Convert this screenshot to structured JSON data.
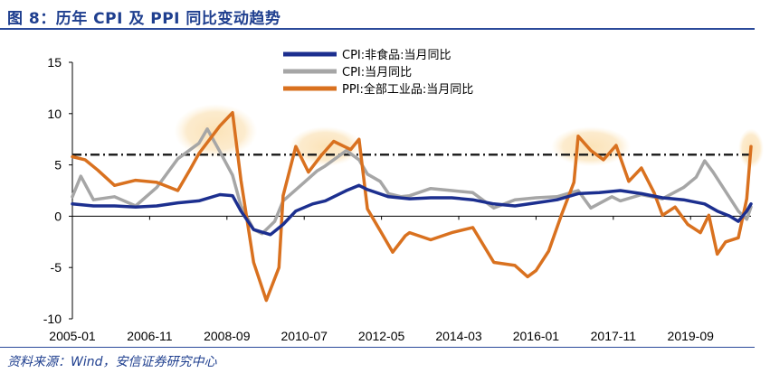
{
  "title": "图 8：历年 CPI 及 PPI 同比变动趋势",
  "source": "资料来源：Wind，安信证券研究中心",
  "chart_data": {
    "type": "line",
    "title": "图 8：历年 CPI 及 PPI 同比变动趋势",
    "xlabel": "",
    "ylabel": "",
    "ylim": [
      -10,
      15
    ],
    "yticks": [
      "15",
      "10",
      "5",
      "0",
      "-5",
      "-10"
    ],
    "xrange": [
      2005.0,
      2021.1
    ],
    "xticks": [
      "2005-01",
      "2006-11",
      "2008-09",
      "2010-07",
      "2012-05",
      "2014-03",
      "2016-01",
      "2017-11",
      "2019-09"
    ],
    "reference_line": {
      "y": 6,
      "style": "dash-dot",
      "color": "#222222"
    },
    "highlight_zones": [
      {
        "x": 2008.4,
        "y": 8.3
      },
      {
        "x": 2011.0,
        "y": 6.8
      },
      {
        "x": 2017.3,
        "y": 6.8
      },
      {
        "x": 2021.1,
        "y": 6.6
      }
    ],
    "legend_position": "top-center",
    "series": [
      {
        "name": "CPI:非食品:当月同比",
        "color": "#1c2f8f",
        "points": [
          [
            2005.0,
            1.2
          ],
          [
            2005.5,
            1.0
          ],
          [
            2006.0,
            1.0
          ],
          [
            2006.5,
            0.9
          ],
          [
            2007.0,
            1.0
          ],
          [
            2007.5,
            1.3
          ],
          [
            2008.0,
            1.5
          ],
          [
            2008.5,
            2.1
          ],
          [
            2008.8,
            2.0
          ],
          [
            2009.0,
            0.5
          ],
          [
            2009.3,
            -1.3
          ],
          [
            2009.7,
            -1.8
          ],
          [
            2010.0,
            -0.8
          ],
          [
            2010.3,
            0.5
          ],
          [
            2010.7,
            1.2
          ],
          [
            2011.0,
            1.5
          ],
          [
            2011.5,
            2.5
          ],
          [
            2011.8,
            3.0
          ],
          [
            2012.0,
            2.6
          ],
          [
            2012.5,
            1.9
          ],
          [
            2013.0,
            1.7
          ],
          [
            2013.5,
            1.8
          ],
          [
            2014.0,
            1.8
          ],
          [
            2014.5,
            1.6
          ],
          [
            2015.0,
            1.2
          ],
          [
            2015.5,
            1.0
          ],
          [
            2016.0,
            1.3
          ],
          [
            2016.5,
            1.6
          ],
          [
            2017.0,
            2.2
          ],
          [
            2017.5,
            2.3
          ],
          [
            2018.0,
            2.5
          ],
          [
            2018.5,
            2.2
          ],
          [
            2019.0,
            1.8
          ],
          [
            2019.5,
            1.6
          ],
          [
            2020.0,
            1.2
          ],
          [
            2020.3,
            0.5
          ],
          [
            2020.6,
            0.0
          ],
          [
            2020.8,
            -0.5
          ],
          [
            2021.0,
            0.5
          ],
          [
            2021.1,
            1.2
          ]
        ]
      },
      {
        "name": "CPI:当月同比",
        "color": "#a6a6a6",
        "points": [
          [
            2005.0,
            1.9
          ],
          [
            2005.2,
            3.9
          ],
          [
            2005.5,
            1.6
          ],
          [
            2006.0,
            1.9
          ],
          [
            2006.5,
            1.0
          ],
          [
            2007.0,
            2.8
          ],
          [
            2007.5,
            5.6
          ],
          [
            2008.0,
            7.1
          ],
          [
            2008.2,
            8.5
          ],
          [
            2008.5,
            6.3
          ],
          [
            2008.8,
            4.0
          ],
          [
            2009.0,
            1.0
          ],
          [
            2009.3,
            -1.3
          ],
          [
            2009.5,
            -1.7
          ],
          [
            2009.8,
            -0.5
          ],
          [
            2010.0,
            1.5
          ],
          [
            2010.5,
            3.3
          ],
          [
            2010.8,
            4.4
          ],
          [
            2011.0,
            4.9
          ],
          [
            2011.5,
            6.4
          ],
          [
            2011.8,
            5.5
          ],
          [
            2012.0,
            4.1
          ],
          [
            2012.3,
            3.4
          ],
          [
            2012.5,
            2.2
          ],
          [
            2012.8,
            1.9
          ],
          [
            2013.0,
            2.0
          ],
          [
            2013.5,
            2.7
          ],
          [
            2014.0,
            2.5
          ],
          [
            2014.5,
            2.3
          ],
          [
            2015.0,
            0.8
          ],
          [
            2015.5,
            1.6
          ],
          [
            2016.0,
            1.8
          ],
          [
            2016.5,
            1.9
          ],
          [
            2017.0,
            2.5
          ],
          [
            2017.3,
            0.8
          ],
          [
            2017.8,
            1.9
          ],
          [
            2018.0,
            1.5
          ],
          [
            2018.5,
            2.1
          ],
          [
            2019.0,
            1.7
          ],
          [
            2019.5,
            2.8
          ],
          [
            2019.8,
            3.8
          ],
          [
            2020.0,
            5.4
          ],
          [
            2020.2,
            4.3
          ],
          [
            2020.5,
            2.4
          ],
          [
            2020.8,
            0.5
          ],
          [
            2021.0,
            -0.3
          ],
          [
            2021.1,
            0.9
          ]
        ]
      },
      {
        "name": "PPI:全部工业品:当月同比",
        "color": "#d9711f",
        "points": [
          [
            2005.0,
            5.8
          ],
          [
            2005.3,
            5.5
          ],
          [
            2005.6,
            4.5
          ],
          [
            2006.0,
            3.0
          ],
          [
            2006.5,
            3.5
          ],
          [
            2007.0,
            3.3
          ],
          [
            2007.5,
            2.5
          ],
          [
            2007.8,
            4.6
          ],
          [
            2008.0,
            6.1
          ],
          [
            2008.5,
            8.8
          ],
          [
            2008.8,
            10.1
          ],
          [
            2009.0,
            3.5
          ],
          [
            2009.3,
            -4.5
          ],
          [
            2009.6,
            -8.2
          ],
          [
            2009.9,
            -5.0
          ],
          [
            2010.0,
            2.0
          ],
          [
            2010.3,
            6.8
          ],
          [
            2010.6,
            4.3
          ],
          [
            2010.9,
            5.9
          ],
          [
            2011.2,
            7.3
          ],
          [
            2011.6,
            6.5
          ],
          [
            2011.8,
            7.5
          ],
          [
            2012.0,
            0.7
          ],
          [
            2012.3,
            -1.4
          ],
          [
            2012.6,
            -3.5
          ],
          [
            2012.9,
            -1.9
          ],
          [
            2013.0,
            -1.6
          ],
          [
            2013.5,
            -2.3
          ],
          [
            2014.0,
            -1.6
          ],
          [
            2014.5,
            -1.1
          ],
          [
            2015.0,
            -4.5
          ],
          [
            2015.5,
            -4.8
          ],
          [
            2015.8,
            -5.9
          ],
          [
            2016.0,
            -5.3
          ],
          [
            2016.3,
            -3.4
          ],
          [
            2016.6,
            0.1
          ],
          [
            2016.9,
            3.3
          ],
          [
            2017.0,
            7.8
          ],
          [
            2017.3,
            6.4
          ],
          [
            2017.6,
            5.5
          ],
          [
            2017.9,
            6.9
          ],
          [
            2018.2,
            3.4
          ],
          [
            2018.5,
            4.7
          ],
          [
            2018.8,
            2.3
          ],
          [
            2019.0,
            0.1
          ],
          [
            2019.3,
            0.9
          ],
          [
            2019.6,
            -0.8
          ],
          [
            2019.9,
            -1.6
          ],
          [
            2020.1,
            0.1
          ],
          [
            2020.3,
            -3.7
          ],
          [
            2020.5,
            -2.5
          ],
          [
            2020.8,
            -2.1
          ],
          [
            2021.0,
            1.7
          ],
          [
            2021.1,
            6.8
          ]
        ]
      }
    ]
  }
}
